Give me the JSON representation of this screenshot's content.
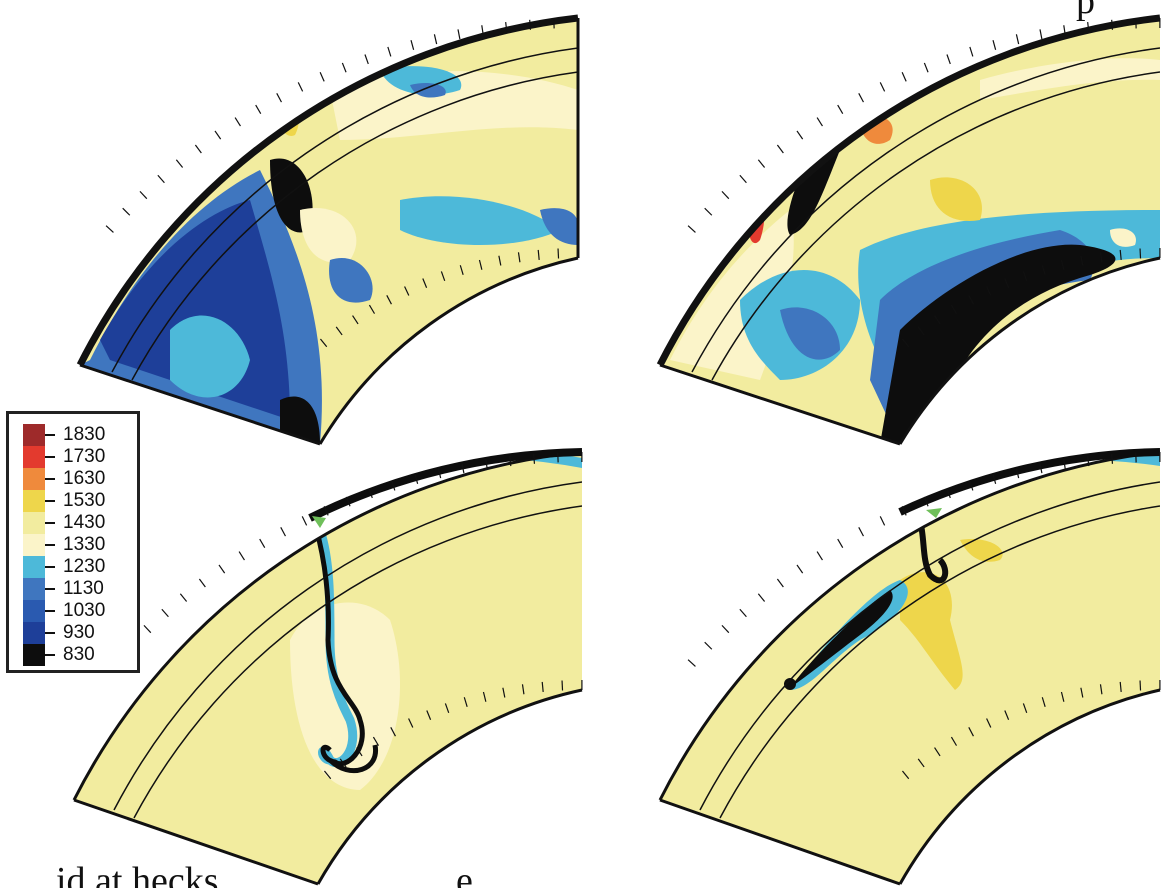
{
  "figure": {
    "colors": {
      "black": "#0d0d0d",
      "dark_blue": "#1e3f99",
      "blue": "#3f76bf",
      "light_blue": "#4db9d9",
      "pale_yellow": "#fbf4c9",
      "yellow": "#f2ec9f",
      "gold": "#eed64b",
      "orange": "#ef8a3c",
      "red": "#e33a2e",
      "dark_red": "#9e2a2a",
      "green": "#6fbf5a"
    }
  },
  "legend": {
    "values": [
      "1830",
      "1730",
      "1630",
      "1530",
      "1430",
      "1330",
      "1230",
      "1130",
      "1030",
      "930",
      "830"
    ],
    "colors": [
      "#9e2a2a",
      "#e33a2e",
      "#ef8a3c",
      "#eed64b",
      "#f2ec9f",
      "#fbf4c9",
      "#4db9d9",
      "#3f76bf",
      "#2a5ab0",
      "#1e3f99",
      "#0d0d0d"
    ]
  },
  "captions": {
    "top_fragment": "p",
    "bottom_fragment": "id at hecks . . . . . . . . . . . . e"
  },
  "panels": [
    {
      "id": "top-left"
    },
    {
      "id": "top-right"
    },
    {
      "id": "bottom-left"
    },
    {
      "id": "bottom-right"
    }
  ]
}
